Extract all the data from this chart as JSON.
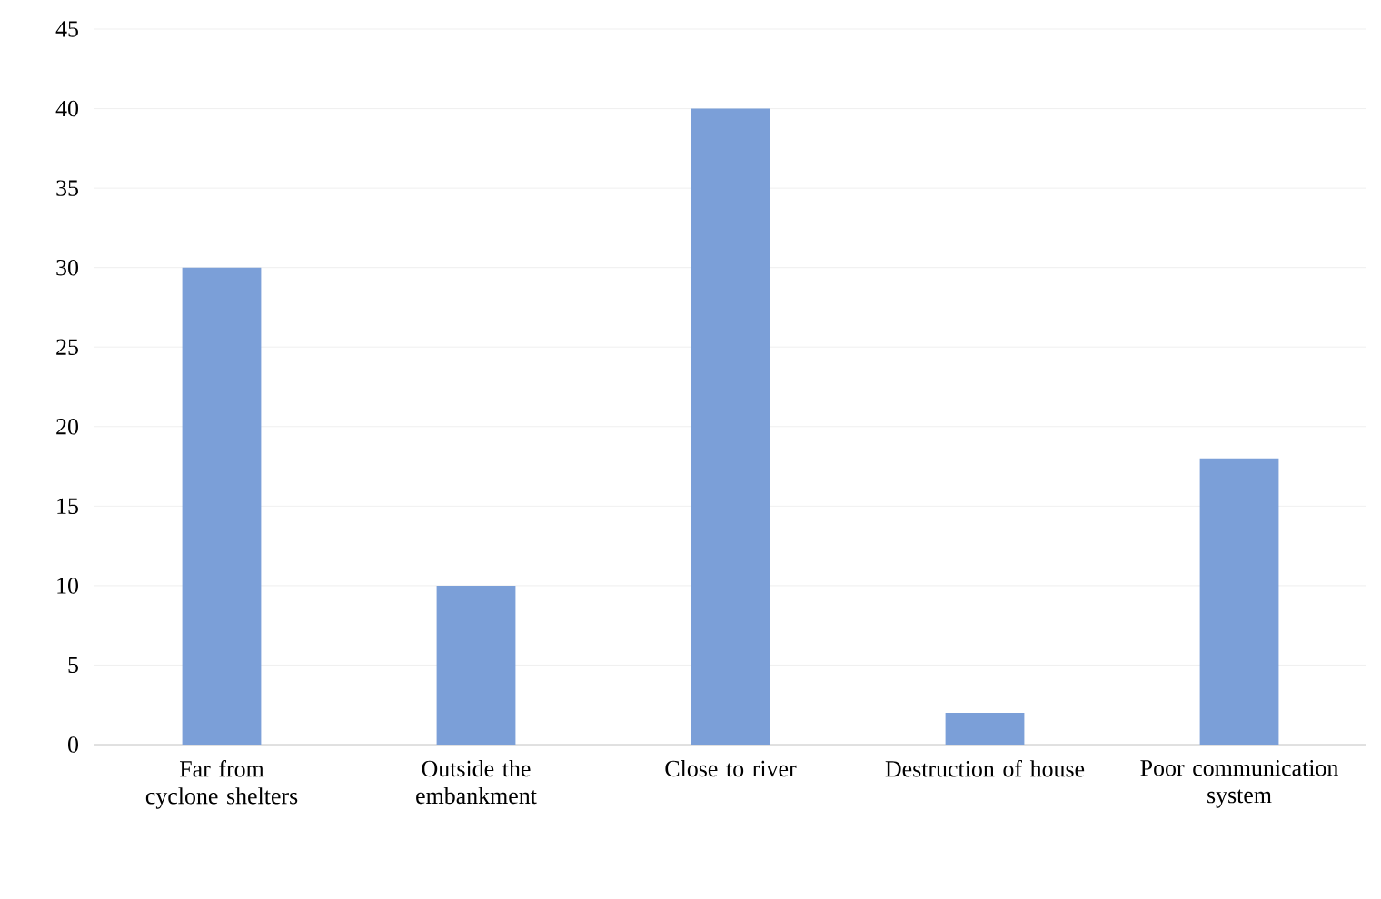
{
  "chart_data": {
    "type": "bar",
    "categories": [
      "Far from cyclone shelters",
      "Outside the embankment",
      "Close to river",
      "Destruction of house",
      "Poor communication system"
    ],
    "values": [
      30,
      10,
      40,
      2,
      18
    ],
    "color": "#7b9fd8",
    "ylim": [
      0,
      45
    ],
    "yticks": [
      0,
      5,
      10,
      15,
      20,
      25,
      30,
      35,
      40,
      45
    ],
    "grid": "y"
  }
}
